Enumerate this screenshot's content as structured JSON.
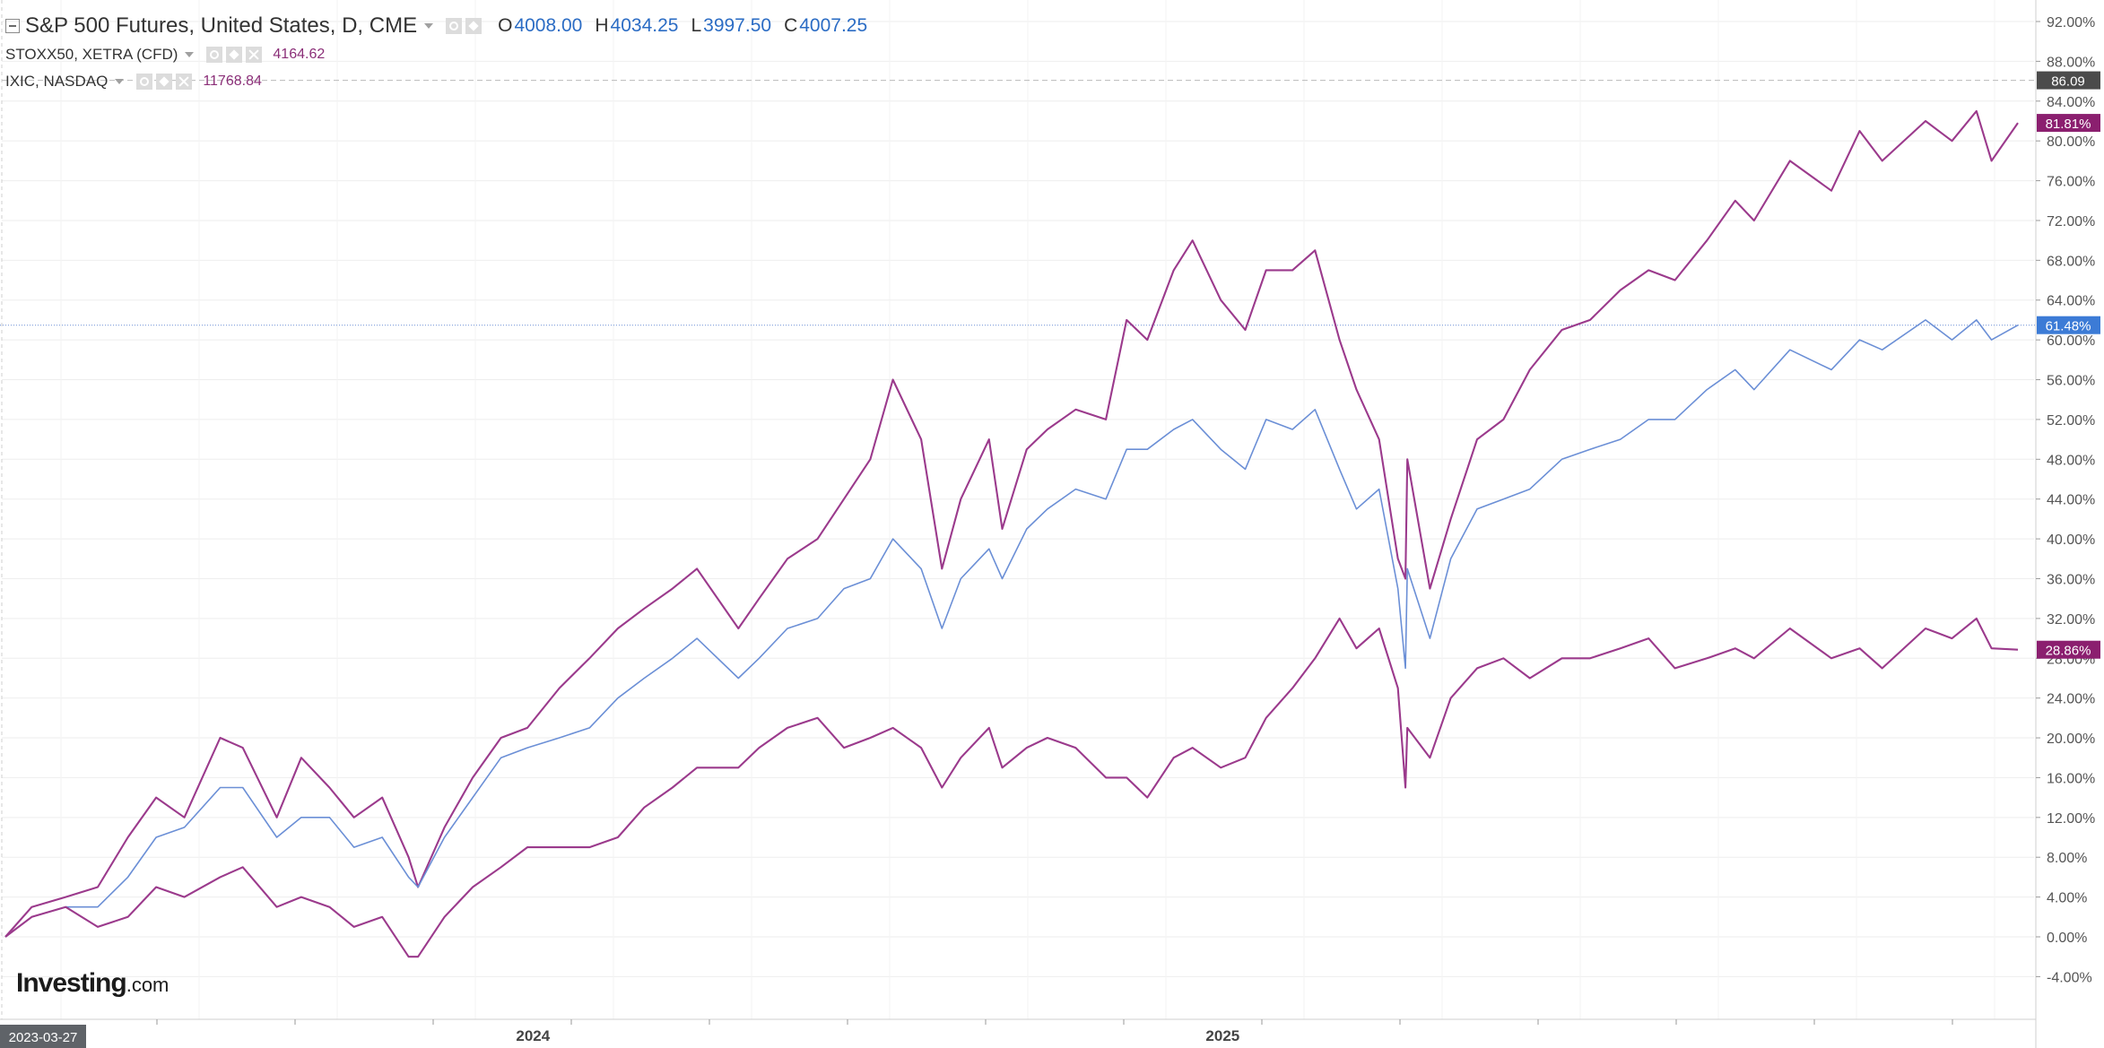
{
  "legend": {
    "main": {
      "symbol": "S&P 500 Futures, United States, D, CME",
      "open_key": "O",
      "open": "4008.00",
      "high_key": "H",
      "high": "4034.25",
      "low_key": "L",
      "low": "3997.50",
      "close_key": "C",
      "close": "4007.25"
    },
    "compare": [
      {
        "symbol": "STOXX50, XETRA (CFD)",
        "value": "4164.62"
      },
      {
        "symbol": "IXIC, NASDAQ",
        "value": "11768.84"
      }
    ]
  },
  "logo": {
    "main": "Investing",
    "suffix": ".com"
  },
  "colors": {
    "sp500": "#6b8fd6",
    "compare": "#9b3a8c",
    "tag_blue": "#3c7bd6",
    "tag_purple": "#8b1f6f",
    "tag_gray": "#4b4b4b",
    "grid": "#eeeeee"
  },
  "icons": [
    "collapse-icon",
    "eye-icon",
    "gear-icon",
    "close-icon",
    "chevron-down-icon"
  ],
  "chart_data": {
    "type": "line",
    "x_range": [
      "2023-03-27",
      "2026-02-27"
    ],
    "ylim": [
      -6,
      94
    ],
    "y_unit": "%",
    "y_ticks": [
      "-4.00%",
      "0.00%",
      "4.00%",
      "8.00%",
      "12.00%",
      "16.00%",
      "20.00%",
      "24.00%",
      "28.00%",
      "32.00%",
      "36.00%",
      "40.00%",
      "44.00%",
      "48.00%",
      "52.00%",
      "56.00%",
      "60.00%",
      "64.00%",
      "68.00%",
      "72.00%",
      "76.00%",
      "80.00%",
      "84.00%",
      "88.00%",
      "92.00%"
    ],
    "x_tick_labels": [
      {
        "date": "2024-01-01",
        "label": "2024"
      },
      {
        "date": "2025-01-01",
        "label": "2025"
      }
    ],
    "start_label": "2023-03-27",
    "grid": true,
    "dashed_line_value": 86.09,
    "dashed_line_label": "86.09",
    "series": [
      {
        "name": "IXIC, NASDAQ",
        "color": "#9b3a8c",
        "last_label": "81.81%",
        "points": [
          [
            "2023-03-27",
            0
          ],
          [
            "2023-04-10",
            3
          ],
          [
            "2023-04-28",
            4
          ],
          [
            "2023-05-15",
            5
          ],
          [
            "2023-05-31",
            10
          ],
          [
            "2023-06-15",
            14
          ],
          [
            "2023-06-30",
            12
          ],
          [
            "2023-07-19",
            20
          ],
          [
            "2023-07-31",
            19
          ],
          [
            "2023-08-18",
            12
          ],
          [
            "2023-08-31",
            18
          ],
          [
            "2023-09-15",
            15
          ],
          [
            "2023-09-28",
            12
          ],
          [
            "2023-10-13",
            14
          ],
          [
            "2023-10-27",
            8
          ],
          [
            "2023-11-01",
            5
          ],
          [
            "2023-11-15",
            11
          ],
          [
            "2023-11-30",
            16
          ],
          [
            "2023-12-15",
            20
          ],
          [
            "2023-12-29",
            21
          ],
          [
            "2024-01-15",
            25
          ],
          [
            "2024-01-31",
            28
          ],
          [
            "2024-02-15",
            31
          ],
          [
            "2024-02-29",
            33
          ],
          [
            "2024-03-15",
            35
          ],
          [
            "2024-03-28",
            37
          ],
          [
            "2024-04-19",
            31
          ],
          [
            "2024-04-30",
            34
          ],
          [
            "2024-05-15",
            38
          ],
          [
            "2024-05-31",
            40
          ],
          [
            "2024-06-14",
            44
          ],
          [
            "2024-06-28",
            48
          ],
          [
            "2024-07-10",
            56
          ],
          [
            "2024-07-25",
            50
          ],
          [
            "2024-08-05",
            37
          ],
          [
            "2024-08-15",
            44
          ],
          [
            "2024-08-30",
            50
          ],
          [
            "2024-09-06",
            41
          ],
          [
            "2024-09-19",
            49
          ],
          [
            "2024-09-30",
            51
          ],
          [
            "2024-10-15",
            53
          ],
          [
            "2024-10-31",
            52
          ],
          [
            "2024-11-11",
            62
          ],
          [
            "2024-11-22",
            60
          ],
          [
            "2024-12-06",
            67
          ],
          [
            "2024-12-16",
            70
          ],
          [
            "2024-12-31",
            64
          ],
          [
            "2025-01-13",
            61
          ],
          [
            "2025-01-24",
            67
          ],
          [
            "2025-02-07",
            67
          ],
          [
            "2025-02-19",
            69
          ],
          [
            "2025-03-04",
            60
          ],
          [
            "2025-03-13",
            55
          ],
          [
            "2025-03-25",
            50
          ],
          [
            "2025-04-04",
            38
          ],
          [
            "2025-04-08",
            36
          ],
          [
            "2025-04-09",
            48
          ],
          [
            "2025-04-21",
            35
          ],
          [
            "2025-05-02",
            42
          ],
          [
            "2025-05-16",
            50
          ],
          [
            "2025-05-30",
            52
          ],
          [
            "2025-06-13",
            57
          ],
          [
            "2025-06-30",
            61
          ],
          [
            "2025-07-15",
            62
          ],
          [
            "2025-07-31",
            65
          ],
          [
            "2025-08-15",
            67
          ],
          [
            "2025-08-29",
            66
          ],
          [
            "2025-09-15",
            70
          ],
          [
            "2025-09-30",
            74
          ],
          [
            "2025-10-10",
            72
          ],
          [
            "2025-10-29",
            78
          ],
          [
            "2025-11-20",
            75
          ],
          [
            "2025-12-05",
            81
          ],
          [
            "2025-12-17",
            78
          ],
          [
            "2026-01-09",
            82
          ],
          [
            "2026-01-23",
            80
          ],
          [
            "2026-02-05",
            83
          ],
          [
            "2026-02-13",
            78
          ],
          [
            "2026-02-27",
            81.81
          ]
        ]
      },
      {
        "name": "S&P 500 Futures",
        "color": "#6b8fd6",
        "last_label": "61.48%",
        "points": [
          [
            "2023-03-27",
            0
          ],
          [
            "2023-04-10",
            2
          ],
          [
            "2023-04-28",
            3
          ],
          [
            "2023-05-15",
            3
          ],
          [
            "2023-05-31",
            6
          ],
          [
            "2023-06-15",
            10
          ],
          [
            "2023-06-30",
            11
          ],
          [
            "2023-07-19",
            15
          ],
          [
            "2023-07-31",
            15
          ],
          [
            "2023-08-18",
            10
          ],
          [
            "2023-08-31",
            12
          ],
          [
            "2023-09-15",
            12
          ],
          [
            "2023-09-28",
            9
          ],
          [
            "2023-10-13",
            10
          ],
          [
            "2023-10-27",
            6
          ],
          [
            "2023-11-01",
            5
          ],
          [
            "2023-11-15",
            10
          ],
          [
            "2023-11-30",
            14
          ],
          [
            "2023-12-15",
            18
          ],
          [
            "2023-12-29",
            19
          ],
          [
            "2024-01-15",
            20
          ],
          [
            "2024-01-31",
            21
          ],
          [
            "2024-02-15",
            24
          ],
          [
            "2024-02-29",
            26
          ],
          [
            "2024-03-15",
            28
          ],
          [
            "2024-03-28",
            30
          ],
          [
            "2024-04-19",
            26
          ],
          [
            "2024-04-30",
            28
          ],
          [
            "2024-05-15",
            31
          ],
          [
            "2024-05-31",
            32
          ],
          [
            "2024-06-14",
            35
          ],
          [
            "2024-06-28",
            36
          ],
          [
            "2024-07-10",
            40
          ],
          [
            "2024-07-25",
            37
          ],
          [
            "2024-08-05",
            31
          ],
          [
            "2024-08-15",
            36
          ],
          [
            "2024-08-30",
            39
          ],
          [
            "2024-09-06",
            36
          ],
          [
            "2024-09-19",
            41
          ],
          [
            "2024-09-30",
            43
          ],
          [
            "2024-10-15",
            45
          ],
          [
            "2024-10-31",
            44
          ],
          [
            "2024-11-11",
            49
          ],
          [
            "2024-11-22",
            49
          ],
          [
            "2024-12-06",
            51
          ],
          [
            "2024-12-16",
            52
          ],
          [
            "2024-12-31",
            49
          ],
          [
            "2025-01-13",
            47
          ],
          [
            "2025-01-24",
            52
          ],
          [
            "2025-02-07",
            51
          ],
          [
            "2025-02-19",
            53
          ],
          [
            "2025-03-04",
            47
          ],
          [
            "2025-03-13",
            43
          ],
          [
            "2025-03-25",
            45
          ],
          [
            "2025-04-04",
            35
          ],
          [
            "2025-04-08",
            27
          ],
          [
            "2025-04-09",
            37
          ],
          [
            "2025-04-21",
            30
          ],
          [
            "2025-05-02",
            38
          ],
          [
            "2025-05-16",
            43
          ],
          [
            "2025-05-30",
            44
          ],
          [
            "2025-06-13",
            45
          ],
          [
            "2025-06-30",
            48
          ],
          [
            "2025-07-15",
            49
          ],
          [
            "2025-07-31",
            50
          ],
          [
            "2025-08-15",
            52
          ],
          [
            "2025-08-29",
            52
          ],
          [
            "2025-09-15",
            55
          ],
          [
            "2025-09-30",
            57
          ],
          [
            "2025-10-10",
            55
          ],
          [
            "2025-10-29",
            59
          ],
          [
            "2025-11-20",
            57
          ],
          [
            "2025-12-05",
            60
          ],
          [
            "2025-12-17",
            59
          ],
          [
            "2026-01-09",
            62
          ],
          [
            "2026-01-23",
            60
          ],
          [
            "2026-02-05",
            62
          ],
          [
            "2026-02-13",
            60
          ],
          [
            "2026-02-27",
            61.48
          ]
        ]
      },
      {
        "name": "STOXX50, XETRA (CFD)",
        "color": "#9b3a8c",
        "last_label": "28.86%",
        "points": [
          [
            "2023-03-27",
            0
          ],
          [
            "2023-04-10",
            2
          ],
          [
            "2023-04-28",
            3
          ],
          [
            "2023-05-15",
            1
          ],
          [
            "2023-05-31",
            2
          ],
          [
            "2023-06-15",
            5
          ],
          [
            "2023-06-30",
            4
          ],
          [
            "2023-07-19",
            6
          ],
          [
            "2023-07-31",
            7
          ],
          [
            "2023-08-18",
            3
          ],
          [
            "2023-08-31",
            4
          ],
          [
            "2023-09-15",
            3
          ],
          [
            "2023-09-28",
            1
          ],
          [
            "2023-10-13",
            2
          ],
          [
            "2023-10-27",
            -2
          ],
          [
            "2023-11-01",
            -2
          ],
          [
            "2023-11-15",
            2
          ],
          [
            "2023-11-30",
            5
          ],
          [
            "2023-12-15",
            7
          ],
          [
            "2023-12-29",
            9
          ],
          [
            "2024-01-15",
            9
          ],
          [
            "2024-01-31",
            9
          ],
          [
            "2024-02-15",
            10
          ],
          [
            "2024-02-29",
            13
          ],
          [
            "2024-03-15",
            15
          ],
          [
            "2024-03-28",
            17
          ],
          [
            "2024-04-19",
            17
          ],
          [
            "2024-04-30",
            19
          ],
          [
            "2024-05-15",
            21
          ],
          [
            "2024-05-31",
            22
          ],
          [
            "2024-06-14",
            19
          ],
          [
            "2024-06-28",
            20
          ],
          [
            "2024-07-10",
            21
          ],
          [
            "2024-07-25",
            19
          ],
          [
            "2024-08-05",
            15
          ],
          [
            "2024-08-15",
            18
          ],
          [
            "2024-08-30",
            21
          ],
          [
            "2024-09-06",
            17
          ],
          [
            "2024-09-19",
            19
          ],
          [
            "2024-09-30",
            20
          ],
          [
            "2024-10-15",
            19
          ],
          [
            "2024-10-31",
            16
          ],
          [
            "2024-11-11",
            16
          ],
          [
            "2024-11-22",
            14
          ],
          [
            "2024-12-06",
            18
          ],
          [
            "2024-12-16",
            19
          ],
          [
            "2024-12-31",
            17
          ],
          [
            "2025-01-13",
            18
          ],
          [
            "2025-01-24",
            22
          ],
          [
            "2025-02-07",
            25
          ],
          [
            "2025-02-19",
            28
          ],
          [
            "2025-03-04",
            32
          ],
          [
            "2025-03-13",
            29
          ],
          [
            "2025-03-25",
            31
          ],
          [
            "2025-04-04",
            25
          ],
          [
            "2025-04-08",
            15
          ],
          [
            "2025-04-09",
            21
          ],
          [
            "2025-04-21",
            18
          ],
          [
            "2025-05-02",
            24
          ],
          [
            "2025-05-16",
            27
          ],
          [
            "2025-05-30",
            28
          ],
          [
            "2025-06-13",
            26
          ],
          [
            "2025-06-30",
            28
          ],
          [
            "2025-07-15",
            28
          ],
          [
            "2025-07-31",
            29
          ],
          [
            "2025-08-15",
            30
          ],
          [
            "2025-08-29",
            27
          ],
          [
            "2025-09-15",
            28
          ],
          [
            "2025-09-30",
            29
          ],
          [
            "2025-10-10",
            28
          ],
          [
            "2025-10-29",
            31
          ],
          [
            "2025-11-20",
            28
          ],
          [
            "2025-12-05",
            29
          ],
          [
            "2025-12-17",
            27
          ],
          [
            "2026-01-09",
            31
          ],
          [
            "2026-01-23",
            30
          ],
          [
            "2026-02-05",
            32
          ],
          [
            "2026-02-13",
            29
          ],
          [
            "2026-02-27",
            28.86
          ]
        ]
      }
    ]
  }
}
